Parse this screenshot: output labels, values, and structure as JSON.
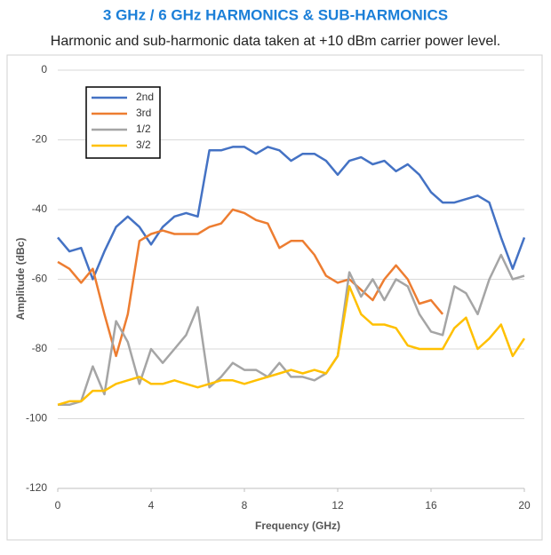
{
  "chart_data": {
    "type": "line",
    "title": "3 GHz / 6 GHz HARMONICS & SUB-HARMONICS",
    "subtitle": "Harmonic and sub-harmonic data taken at +10 dBm carrier power level.",
    "x_label": "Frequency (GHz)",
    "y_label": "Amplitude (dBc)",
    "x": [
      0,
      0.5,
      1,
      1.5,
      2,
      2.5,
      3,
      3.5,
      4,
      4.5,
      5,
      5.5,
      6,
      6.5,
      7,
      7.5,
      8,
      8.5,
      9,
      9.5,
      10,
      10.5,
      11,
      11.5,
      12,
      12.5,
      13,
      13.5,
      14,
      14.5,
      15,
      15.5,
      16,
      16.5,
      17,
      17.5,
      18,
      18.5,
      19,
      19.5,
      20
    ],
    "series": [
      {
        "name": "2nd",
        "color": "#4472c4",
        "values": [
          -48,
          -52,
          -51,
          -60,
          -52,
          -45,
          -42,
          -45,
          -50,
          -45,
          -42,
          -41,
          -42,
          -23,
          -23,
          -22,
          -22,
          -24,
          -22,
          -23,
          -26,
          -24,
          -24,
          -26,
          -30,
          -26,
          -25,
          -27,
          -26,
          -29,
          -27,
          -30,
          -35,
          -38,
          -38,
          -37,
          -36,
          -38,
          -48,
          -57,
          -48
        ]
      },
      {
        "name": "3rd",
        "color": "#ed7d31",
        "values": [
          -55,
          -57,
          -61,
          -57,
          -70,
          -82,
          -70,
          -49,
          -47,
          -46,
          -47,
          -47,
          -47,
          -45,
          -44,
          -40,
          -41,
          -43,
          -44,
          -51,
          -49,
          -49,
          -53,
          -59,
          -61,
          -60,
          -63,
          -66,
          -60,
          -56,
          -60,
          -67,
          -66,
          -70,
          null,
          null,
          null,
          null,
          null,
          null,
          null
        ]
      },
      {
        "name": "1/2",
        "color": "#a5a5a5",
        "values": [
          -96,
          -96,
          -95,
          -85,
          -93,
          -72,
          -78,
          -90,
          -80,
          -84,
          -80,
          -76,
          -68,
          -91,
          -88,
          -84,
          -86,
          -86,
          -88,
          -84,
          -88,
          -88,
          -89,
          -87,
          -82,
          -58,
          -65,
          -60,
          -66,
          -60,
          -62,
          -70,
          -75,
          -76,
          -62,
          -64,
          -70,
          -60,
          -53,
          -60,
          -59
        ]
      },
      {
        "name": "3/2",
        "color": "#ffc000",
        "values": [
          -96,
          -95,
          -95,
          -92,
          -92,
          -90,
          -89,
          -88,
          -90,
          -90,
          -89,
          -90,
          -91,
          -90,
          -89,
          -89,
          -90,
          -89,
          -88,
          -87,
          -86,
          -87,
          -86,
          -87,
          -82,
          -62,
          -70,
          -73,
          -73,
          -74,
          -79,
          -80,
          -80,
          -80,
          -74,
          -71,
          -80,
          -77,
          -73,
          -82,
          -77
        ]
      }
    ],
    "xlim": [
      0,
      20
    ],
    "xticks": [
      0,
      4,
      8,
      12,
      16,
      20
    ],
    "ylim": [
      -120,
      0
    ],
    "yticks": [
      -120,
      -100,
      -80,
      -60,
      -40,
      -20,
      0
    ],
    "grid": true,
    "legend": "upper left"
  }
}
